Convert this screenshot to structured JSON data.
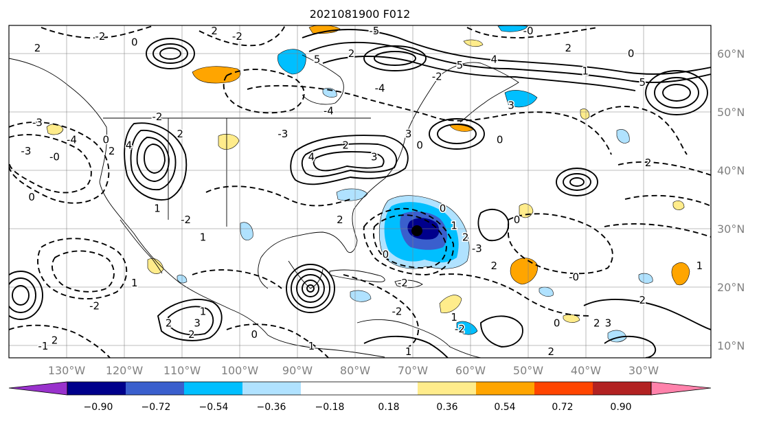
{
  "title": "2021081900 F012",
  "map": {
    "projection": "PlateCarree",
    "lon_range": [
      -138,
      -15
    ],
    "lat_range": [
      7,
      65
    ],
    "gridlines": true,
    "lat_labels": [
      "60°N",
      "50°N",
      "40°N",
      "30°N",
      "20°N",
      "10°N"
    ],
    "lat_values": [
      60,
      50,
      40,
      30,
      20,
      10
    ],
    "lon_labels": [
      "130°W",
      "120°W",
      "110°W",
      "100°W",
      "90°W",
      "80°W",
      "70°W",
      "60°W",
      "50°W",
      "40°W",
      "30°W"
    ],
    "lon_values": [
      -130,
      -120,
      -110,
      -100,
      -90,
      -80,
      -70,
      -60,
      -50,
      -40,
      -30
    ],
    "storm_center": {
      "lon": -70,
      "lat": 30
    }
  },
  "colorbar": {
    "tick_labels": [
      "−0.90",
      "−0.72",
      "−0.54",
      "−0.36",
      "−0.18",
      "0.18",
      "0.36",
      "0.54",
      "0.72",
      "0.90"
    ],
    "tick_values": [
      -0.9,
      -0.72,
      -0.54,
      -0.36,
      -0.18,
      0.18,
      0.36,
      0.54,
      0.72,
      0.9
    ],
    "extend": "both",
    "colors": [
      "#9932cc",
      "#00008b",
      "#3a5fcd",
      "#00bfff",
      "#b0e2ff",
      "#ffffff",
      "#ffec8b",
      "#ffa500",
      "#ff4500",
      "#b22222",
      "#ff82ab"
    ]
  },
  "contour_labels": [
    {
      "text": "2",
      "lon": -133,
      "lat": 61
    },
    {
      "text": "-2",
      "lon": -122,
      "lat": 63
    },
    {
      "text": "0",
      "lon": -116,
      "lat": 62
    },
    {
      "text": "2",
      "lon": -102,
      "lat": 64
    },
    {
      "text": "-2",
      "lon": -98,
      "lat": 63
    },
    {
      "text": "5",
      "lon": -84,
      "lat": 59
    },
    {
      "text": "2",
      "lon": -78,
      "lat": 60
    },
    {
      "text": "-5",
      "lon": -74,
      "lat": 64
    },
    {
      "text": "5",
      "lon": -59,
      "lat": 58
    },
    {
      "text": "-2",
      "lon": -63,
      "lat": 56
    },
    {
      "text": "-4",
      "lon": -73,
      "lat": 54
    },
    {
      "text": "4",
      "lon": -53,
      "lat": 59
    },
    {
      "text": "-0",
      "lon": -47,
      "lat": 64
    },
    {
      "text": "2",
      "lon": -40,
      "lat": 61
    },
    {
      "text": "1",
      "lon": -37,
      "lat": 57
    },
    {
      "text": "0",
      "lon": -29,
      "lat": 60
    },
    {
      "text": "5",
      "lon": -27,
      "lat": 55
    },
    {
      "text": "3",
      "lon": -50,
      "lat": 51
    },
    {
      "text": "-4",
      "lon": -82,
      "lat": 50
    },
    {
      "text": "-3",
      "lon": -90,
      "lat": 46
    },
    {
      "text": "-2",
      "lon": -112,
      "lat": 49
    },
    {
      "text": "2",
      "lon": -108,
      "lat": 46
    },
    {
      "text": "-3",
      "lon": -133,
      "lat": 48
    },
    {
      "text": "-4",
      "lon": -127,
      "lat": 45
    },
    {
      "text": "-3",
      "lon": -135,
      "lat": 43
    },
    {
      "text": "-0",
      "lon": -130,
      "lat": 42
    },
    {
      "text": "0",
      "lon": -134,
      "lat": 35
    },
    {
      "text": "0",
      "lon": -121,
      "lat": 45
    },
    {
      "text": "2",
      "lon": -120,
      "lat": 43
    },
    {
      "text": "4",
      "lon": -117,
      "lat": 44
    },
    {
      "text": "4",
      "lon": -85,
      "lat": 42
    },
    {
      "text": "2",
      "lon": -79,
      "lat": 44
    },
    {
      "text": "3",
      "lon": -74,
      "lat": 42
    },
    {
      "text": "3",
      "lon": -68,
      "lat": 46
    },
    {
      "text": "0",
      "lon": -66,
      "lat": 44
    },
    {
      "text": "0",
      "lon": -52,
      "lat": 45
    },
    {
      "text": "2",
      "lon": -26,
      "lat": 41
    },
    {
      "text": "1",
      "lon": -112,
      "lat": 33
    },
    {
      "text": "-2",
      "lon": -107,
      "lat": 31
    },
    {
      "text": "1",
      "lon": -104,
      "lat": 28
    },
    {
      "text": "2",
      "lon": -80,
      "lat": 31
    },
    {
      "text": "0",
      "lon": -72,
      "lat": 25
    },
    {
      "text": "0",
      "lon": -62,
      "lat": 33
    },
    {
      "text": "1",
      "lon": -60,
      "lat": 30
    },
    {
      "text": "2",
      "lon": -58,
      "lat": 28
    },
    {
      "text": "-3",
      "lon": -56,
      "lat": 26
    },
    {
      "text": "0",
      "lon": -49,
      "lat": 31
    },
    {
      "text": "2",
      "lon": -53,
      "lat": 23
    },
    {
      "text": "-2",
      "lon": -123,
      "lat": 16
    },
    {
      "text": "1",
      "lon": -116,
      "lat": 20
    },
    {
      "text": "1",
      "lon": -104,
      "lat": 15
    },
    {
      "text": "2",
      "lon": -110,
      "lat": 13
    },
    {
      "text": "3",
      "lon": -105,
      "lat": 13
    },
    {
      "text": "2",
      "lon": -106,
      "lat": 11
    },
    {
      "text": "-1",
      "lon": -132,
      "lat": 9
    },
    {
      "text": "2",
      "lon": -130,
      "lat": 10
    },
    {
      "text": "0",
      "lon": -95,
      "lat": 11
    },
    {
      "text": "1",
      "lon": -85,
      "lat": 9
    },
    {
      "text": "1",
      "lon": -68,
      "lat": 8
    },
    {
      "text": "-2",
      "lon": -70,
      "lat": 15
    },
    {
      "text": "-2",
      "lon": -69,
      "lat": 20
    },
    {
      "text": "1",
      "lon": -60,
      "lat": 14
    },
    {
      "text": "-2",
      "lon": -59,
      "lat": 12
    },
    {
      "text": "2",
      "lon": -43,
      "lat": 8
    },
    {
      "text": "0",
      "lon": -42,
      "lat": 13
    },
    {
      "text": "2",
      "lon": -35,
      "lat": 13
    },
    {
      "text": "3",
      "lon": -33,
      "lat": 13
    },
    {
      "text": "2",
      "lon": -27,
      "lat": 17
    },
    {
      "text": "-0",
      "lon": -39,
      "lat": 21
    },
    {
      "text": "1",
      "lon": -17,
      "lat": 23
    }
  ]
}
